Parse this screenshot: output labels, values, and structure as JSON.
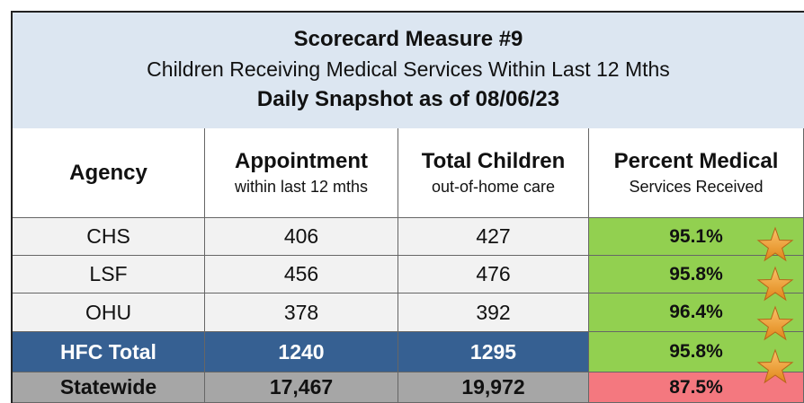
{
  "header": {
    "title": "Scorecard Measure #9",
    "subtitle": "Children Receiving Medical Services Within Last 12 Mths",
    "snapshot": "Daily Snapshot as of 08/06/23"
  },
  "table": {
    "columns": [
      {
        "title": "Agency"
      },
      {
        "title": "Appointment",
        "subtitle": "within last 12 mths"
      },
      {
        "title": "Total Children",
        "subtitle": "out-of-home care"
      },
      {
        "title": "Percent Medical",
        "subtitle": "Services Received"
      }
    ],
    "rows": [
      [
        "CHS",
        "406",
        "427",
        "95.1%"
      ],
      [
        "LSF",
        "456",
        "476",
        "95.8%"
      ],
      [
        "OHU",
        "378",
        "392",
        "96.4%"
      ],
      [
        "HFC Total",
        "1240",
        "1295",
        "95.8%"
      ],
      [
        "Statewide",
        "17,467",
        "19,972",
        "87.5%"
      ]
    ]
  }
}
